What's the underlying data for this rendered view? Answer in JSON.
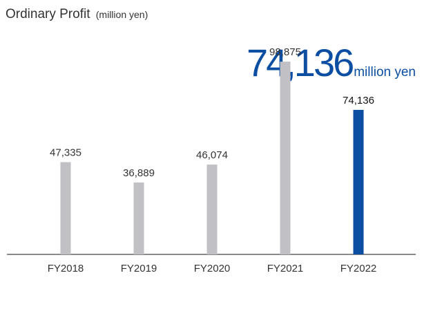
{
  "title": "Ordinary Profit",
  "title_unit": "(million yen)",
  "highlight": {
    "value": "74,136",
    "unit": "million yen"
  },
  "colors": {
    "bar": "#c0c0c5",
    "highlight_bar": "#0b4ea2",
    "highlight_text": "#0b4ea2",
    "text": "#333333",
    "axis": "#444444"
  },
  "chart_data": {
    "type": "bar",
    "title": "Ordinary Profit",
    "ylabel": "(million yen)",
    "categories": [
      "FY2018",
      "FY2019",
      "FY2020",
      "FY2021",
      "FY2022"
    ],
    "values": [
      47335,
      36889,
      46074,
      98875,
      74136
    ],
    "value_labels": [
      "47,335",
      "36,889",
      "46,074",
      "98,875",
      "74,136"
    ],
    "highlight_index": 4,
    "ylim": [
      0,
      100000
    ],
    "grid": false,
    "legend": "none"
  }
}
